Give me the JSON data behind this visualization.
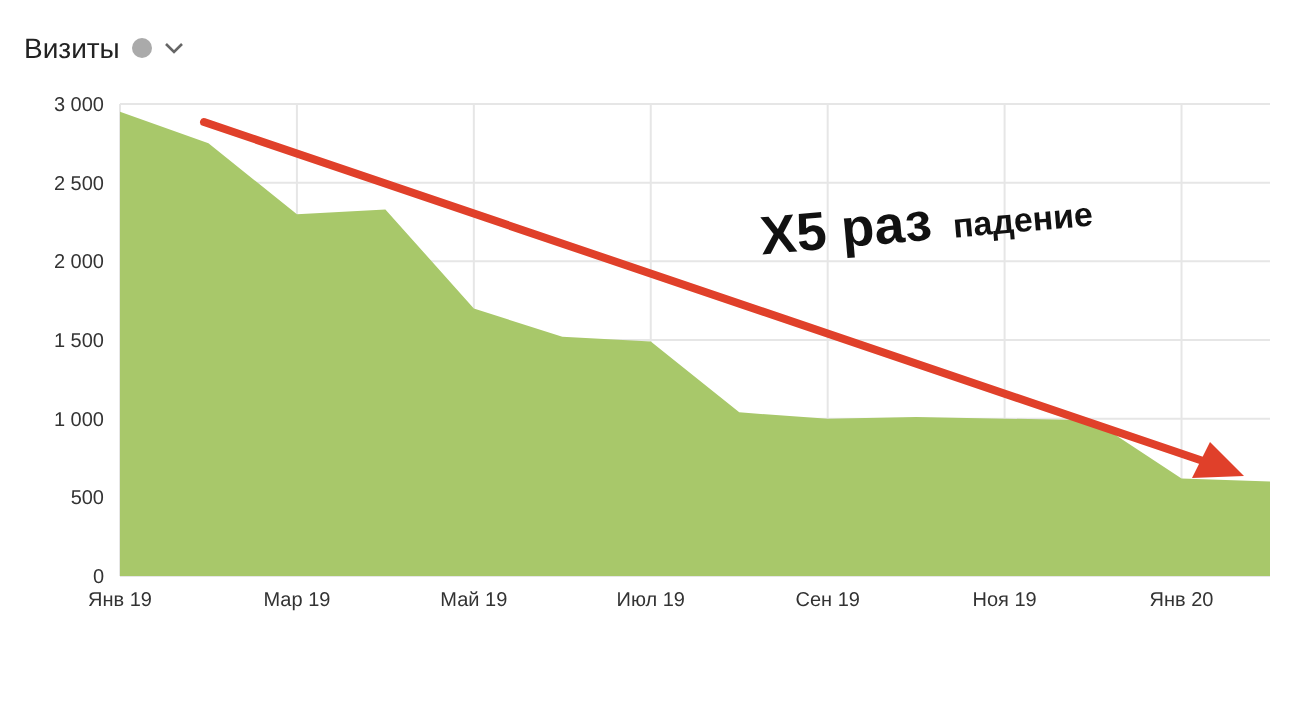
{
  "chart_data": {
    "type": "area",
    "title": "Визиты",
    "categories": [
      "Янв 19",
      null,
      "Мар 19",
      null,
      "Май 19",
      null,
      "Июл 19",
      null,
      "Сен 19",
      null,
      "Ноя 19",
      null,
      "Янв 20",
      null
    ],
    "series": [
      {
        "color": "#a8c86a",
        "values": [
          2950,
          2750,
          2300,
          2330,
          1700,
          1520,
          1490,
          1040,
          1000,
          1010,
          1000,
          990,
          620,
          600
        ]
      }
    ],
    "ylim": [
      0,
      3000
    ],
    "yticks": [
      0,
      500,
      {
        "value": 1000,
        "label": "1 000"
      },
      {
        "value": 1500,
        "label": "1 500"
      },
      {
        "value": 2000,
        "label": "2 000"
      },
      {
        "value": 2500,
        "label": "2 500"
      },
      {
        "value": 3000,
        "label": "3 000"
      }
    ],
    "grid": true,
    "annotations": [
      "X5 раз",
      "падение"
    ]
  }
}
